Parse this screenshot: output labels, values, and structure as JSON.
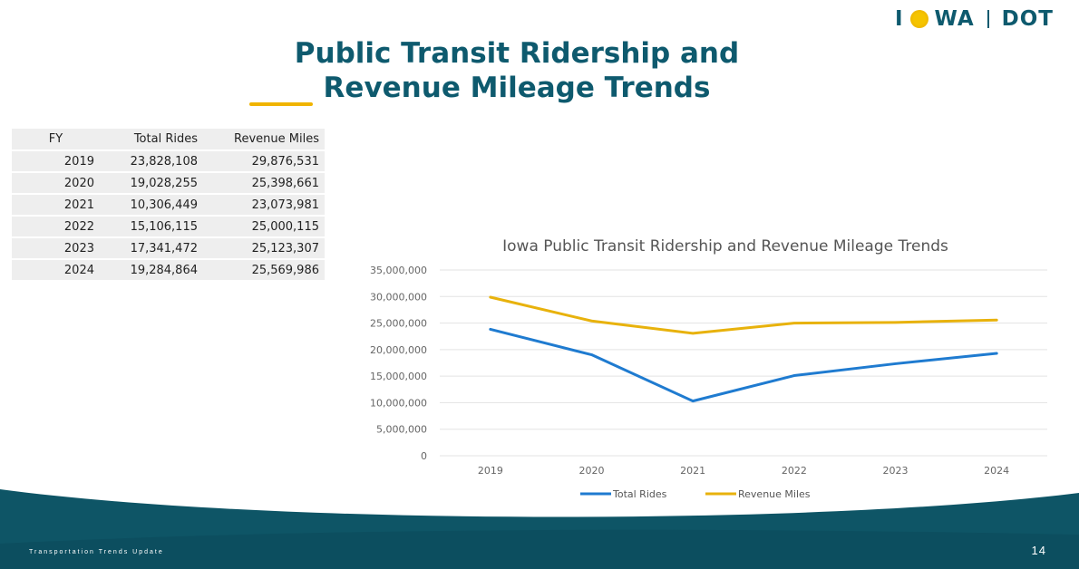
{
  "logo": {
    "left": "I",
    "mid": "WA",
    "right": "DOT"
  },
  "title": {
    "line1": "Public Transit Ridership and",
    "line2": "Revenue Mileage Trends"
  },
  "table": {
    "headers": [
      "FY",
      "Total Rides",
      "Revenue Miles"
    ],
    "rows": [
      [
        "2019",
        "23,828,108",
        "29,876,531"
      ],
      [
        "2020",
        "19,028,255",
        "25,398,661"
      ],
      [
        "2021",
        "10,306,449",
        "23,073,981"
      ],
      [
        "2022",
        "15,106,115",
        "25,000,115"
      ],
      [
        "2023",
        "17,341,472",
        "25,123,307"
      ],
      [
        "2024",
        "19,284,864",
        "25,569,986"
      ]
    ]
  },
  "chart_data": {
    "type": "line",
    "title": "Iowa Public Transit Ridership and Revenue Mileage Trends",
    "categories": [
      "2019",
      "2020",
      "2021",
      "2022",
      "2023",
      "2024"
    ],
    "series": [
      {
        "name": "Total Rides",
        "color": "#1f7bd0",
        "values": [
          23828108,
          19028255,
          10306449,
          15106115,
          17341472,
          19284864
        ]
      },
      {
        "name": "Revenue Miles",
        "color": "#e8b20c",
        "values": [
          29876531,
          25398661,
          23073981,
          25000115,
          25123307,
          25569986
        ]
      }
    ],
    "ylim": [
      0,
      35000000
    ],
    "yticks": [
      "0",
      "5,000,000",
      "10,000,000",
      "15,000,000",
      "20,000,000",
      "25,000,000",
      "30,000,000",
      "35,000,000"
    ],
    "grid": true,
    "legend": "bottom"
  },
  "footer": {
    "text": "Transportation Trends Update",
    "page": "14"
  },
  "colors": {
    "brand": "#0e5a6e",
    "accent": "#f0b400",
    "footer": "#0e5566"
  }
}
